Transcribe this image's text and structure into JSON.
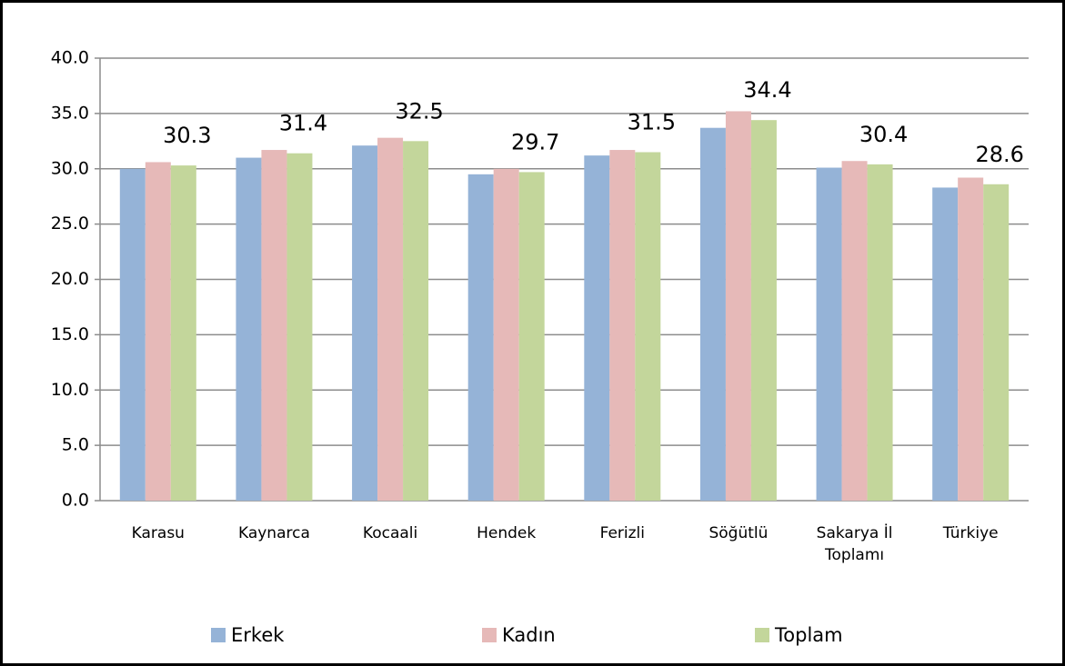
{
  "chart_data": {
    "type": "bar",
    "categories": [
      "Karasu",
      "Kaynarca",
      "Kocaali",
      "Hendek",
      "Ferizli",
      "Söğütlü",
      "Sakarya İl Toplamı",
      "Türkiye"
    ],
    "series": [
      {
        "name": "Erkek",
        "color": "#95b3d7",
        "values": [
          30.0,
          31.0,
          32.1,
          29.5,
          31.2,
          33.7,
          30.1,
          28.3
        ]
      },
      {
        "name": "Kadın",
        "color": "#e6b9b8",
        "values": [
          30.6,
          31.7,
          32.8,
          30.0,
          31.7,
          35.2,
          30.7,
          29.2
        ]
      },
      {
        "name": "Toplam",
        "color": "#c3d69b",
        "values": [
          30.3,
          31.4,
          32.5,
          29.7,
          31.5,
          34.4,
          30.4,
          28.6
        ],
        "show_values": true
      }
    ],
    "ylim": [
      0,
      40
    ],
    "yticks": [
      {
        "value": 0,
        "label": "0.0"
      },
      {
        "value": 5,
        "label": "5.0"
      },
      {
        "value": 10,
        "label": "10.0"
      },
      {
        "value": 15,
        "label": "15.0"
      },
      {
        "value": 20,
        "label": "20.0"
      },
      {
        "value": 25,
        "label": "25.0"
      },
      {
        "value": 30,
        "label": "30.0"
      },
      {
        "value": 35,
        "label": "35.0"
      },
      {
        "value": 40,
        "label": "40.0"
      }
    ],
    "grid": true,
    "legend": "bottom"
  }
}
